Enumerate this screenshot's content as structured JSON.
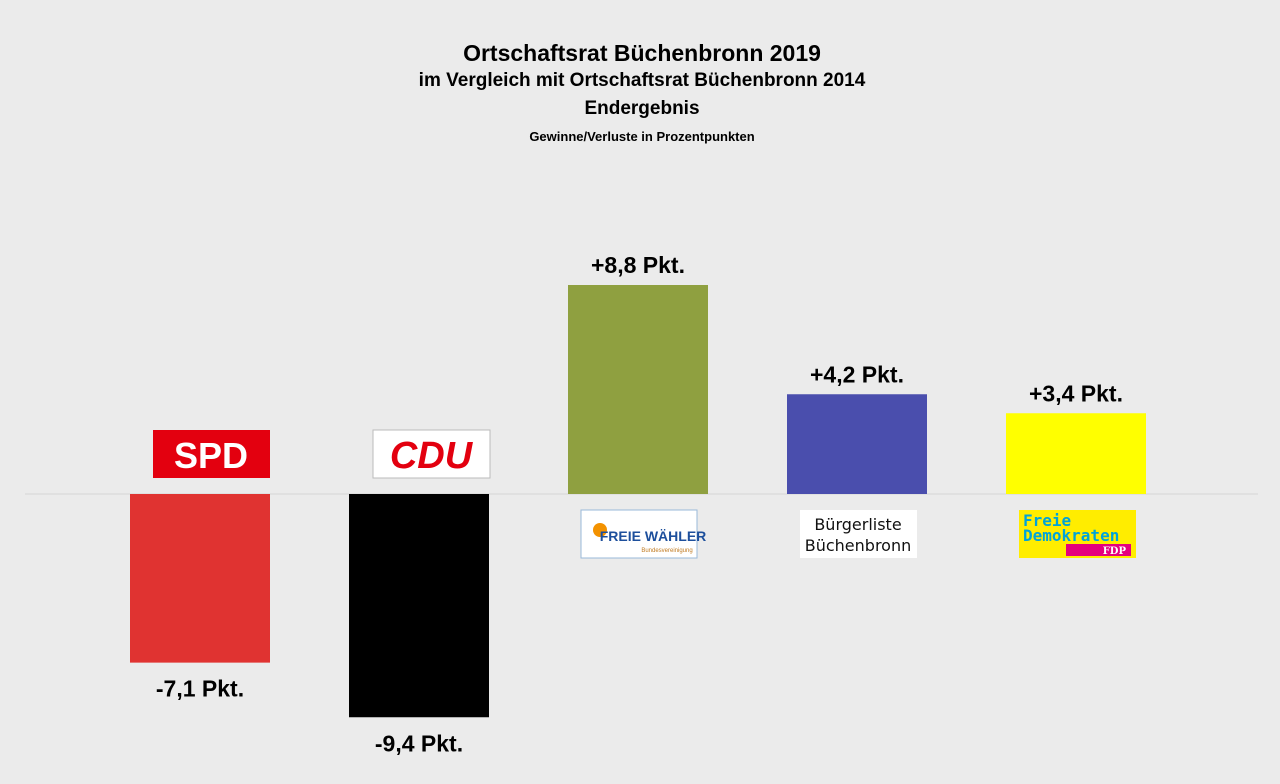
{
  "chart_data": {
    "type": "bar",
    "title": "Ortschaftsrat Büchenbronn 2019",
    "subtitle": "im Vergleich mit Ortschaftsrat Büchenbronn 2014",
    "subtitle2": "Endergebnis",
    "subtitle3": "Gewinne/Verluste in Prozentpunkten",
    "categories": [
      "SPD",
      "CDU",
      "FREIE WÄHLER",
      "Bürgerliste Büchenbronn",
      "Freie Demokraten FDP"
    ],
    "values": [
      -7.1,
      -9.4,
      8.8,
      4.2,
      3.4
    ],
    "data_labels": [
      "-7,1 Pkt.",
      "-9,4 Pkt.",
      "+8,8 Pkt.",
      "+4,2 Pkt.",
      "+3,4 Pkt."
    ],
    "colors": [
      "#e03331",
      "#000000",
      "#8fa040",
      "#4a4ead",
      "#ffff00"
    ],
    "logos": [
      {
        "lines": [
          "SPD"
        ]
      },
      {
        "lines": [
          "CDU"
        ]
      },
      {
        "lines": [
          "FREIE WÄHLER",
          "Bundesvereinigung"
        ]
      },
      {
        "lines": [
          "Bürgerliste",
          "Büchenbronn"
        ]
      },
      {
        "lines": [
          "Freie",
          "Demokraten",
          "FDP"
        ]
      }
    ],
    "ylim": [
      -10,
      10
    ],
    "grid": false,
    "legend": "none"
  }
}
